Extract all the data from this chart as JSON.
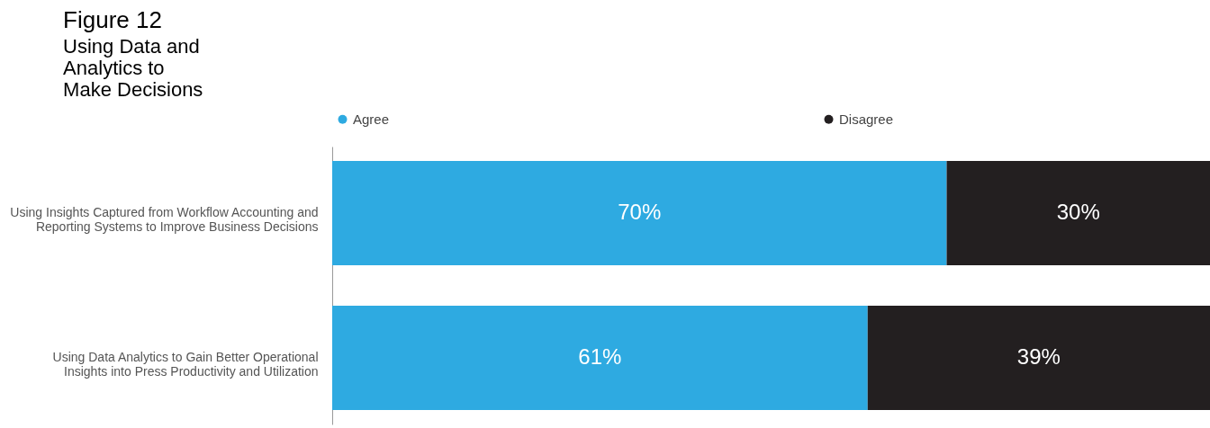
{
  "chart_data": {
    "type": "bar",
    "orientation": "horizontal",
    "stacked": true,
    "title": "Figure 12",
    "subtitle": "Using Data and Analytics to Make Decisions",
    "categories": [
      "Using Insights Captured from Workflow Accounting and Reporting Systems to Improve Business Decisions",
      "Using Data Analytics to Gain Better Operational Insights into Press Productivity and Utilization"
    ],
    "series": [
      {
        "name": "Agree",
        "color": "#2eaae1",
        "values": [
          70,
          61
        ],
        "value_labels": [
          "70%",
          "61%"
        ]
      },
      {
        "name": "Disagree",
        "color": "#231f20",
        "values": [
          30,
          39
        ],
        "value_labels": [
          "30%",
          "39%"
        ]
      }
    ],
    "legend": "top",
    "grid": false
  }
}
